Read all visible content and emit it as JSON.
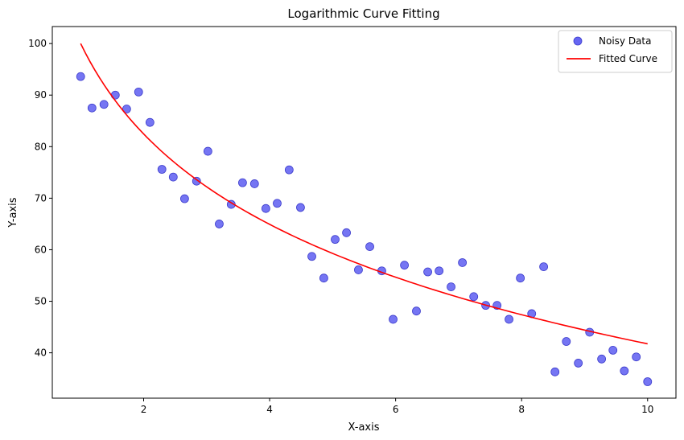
{
  "chart_data": {
    "type": "scatter",
    "title": "Logarithmic Curve Fitting",
    "xlabel": "X-axis",
    "ylabel": "Y-axis",
    "xlim": [
      0.55,
      10.45
    ],
    "ylim": [
      31.2,
      103.3
    ],
    "xticks": [
      2,
      4,
      6,
      8,
      10
    ],
    "yticks": [
      40,
      50,
      60,
      70,
      80,
      90,
      100
    ],
    "grid": false,
    "legend_position": "top-right",
    "series": [
      {
        "name": "Noisy Data",
        "kind": "scatter",
        "color": "#6666f2",
        "x": [
          1.0,
          1.18,
          1.37,
          1.55,
          1.73,
          1.92,
          2.1,
          2.29,
          2.47,
          2.65,
          2.84,
          3.02,
          3.2,
          3.39,
          3.57,
          3.76,
          3.94,
          4.12,
          4.31,
          4.49,
          4.67,
          4.86,
          5.04,
          5.22,
          5.41,
          5.59,
          5.78,
          5.96,
          6.14,
          6.33,
          6.51,
          6.69,
          6.88,
          7.06,
          7.24,
          7.43,
          7.61,
          7.8,
          7.98,
          8.16,
          8.35,
          8.53,
          8.71,
          8.9,
          9.08,
          9.27,
          9.45,
          9.63,
          9.82,
          10.0
        ],
        "y": [
          93.6,
          87.5,
          88.2,
          90.0,
          87.3,
          90.6,
          84.7,
          75.6,
          74.1,
          69.9,
          73.3,
          79.1,
          65.0,
          68.8,
          73.0,
          72.8,
          68.0,
          69.0,
          75.5,
          68.2,
          58.7,
          54.5,
          62.0,
          63.3,
          56.1,
          60.6,
          55.9,
          46.5,
          57.0,
          48.1,
          55.7,
          55.9,
          52.8,
          57.5,
          50.9,
          49.2,
          49.2,
          46.5,
          54.5,
          47.6,
          56.7,
          36.3,
          42.2,
          38.0,
          44.0,
          38.8,
          40.5,
          36.5,
          39.2,
          34.4
        ]
      },
      {
        "name": "Fitted Curve",
        "kind": "line",
        "color": "#ff0000",
        "function": "y = 100 - 25.3*ln(x)",
        "x_range": [
          1,
          10
        ]
      }
    ]
  }
}
